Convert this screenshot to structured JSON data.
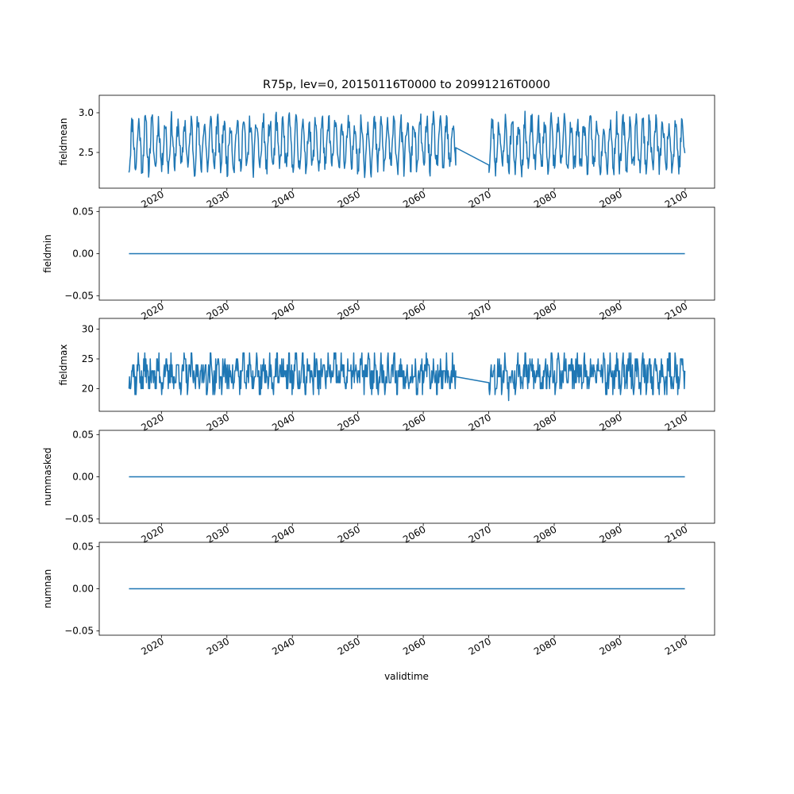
{
  "figure": {
    "title": "R75p, lev=0, 20150116T0000 to 20991216T0000",
    "xlabel": "validtime",
    "line_color": "#1f77b4"
  },
  "chart_data": [
    {
      "type": "line",
      "ylabel": "fieldmean",
      "xlim": [
        2010.5,
        2104.5
      ],
      "ylim": [
        2.05,
        3.22
      ],
      "yticks": [
        "2.5",
        "3.0"
      ],
      "ytick_values": [
        2.5,
        3.0
      ],
      "xticks": [
        "2020",
        "2030",
        "2040",
        "2050",
        "2060",
        "2070",
        "2080",
        "2090",
        "2100"
      ],
      "xtick_values": [
        2020,
        2030,
        2040,
        2050,
        2060,
        2070,
        2080,
        2090,
        2100
      ],
      "series": [
        {
          "segments": [
            {
              "start": 2015.04,
              "end": 2064.96,
              "step": 0.0833333,
              "mean": 2.6,
              "amplitude": 0.28,
              "noise": 0.14,
              "seed": 11,
              "lo": 2.1,
              "hi": 3.16
            },
            {
              "start": 2070.04,
              "end": 2099.96,
              "step": 0.0833333,
              "mean": 2.6,
              "amplitude": 0.28,
              "noise": 0.14,
              "seed": 23,
              "lo": 2.1,
              "hi": 3.16
            }
          ],
          "gap_line": {
            "x": [
              2064.96,
              2070.04
            ],
            "y": [
              2.56,
              2.34
            ]
          }
        }
      ]
    },
    {
      "type": "line",
      "ylabel": "fieldmin",
      "xlim": [
        2010.5,
        2104.5
      ],
      "ylim": [
        -0.055,
        0.055
      ],
      "yticks": [
        "−0.05",
        "0.00",
        "0.05"
      ],
      "ytick_values": [
        -0.05,
        0.0,
        0.05
      ],
      "xticks": [
        "2020",
        "2030",
        "2040",
        "2050",
        "2060",
        "2070",
        "2080",
        "2090",
        "2100"
      ],
      "xtick_values": [
        2020,
        2030,
        2040,
        2050,
        2060,
        2070,
        2080,
        2090,
        2100
      ],
      "series": [
        {
          "x": [
            2015.04,
            2099.96
          ],
          "y": [
            0.0,
            0.0
          ]
        }
      ]
    },
    {
      "type": "line",
      "ylabel": "fieldmax",
      "xlim": [
        2010.5,
        2104.5
      ],
      "ylim": [
        16.2,
        31.8
      ],
      "yticks": [
        "20",
        "25",
        "30"
      ],
      "ytick_values": [
        20,
        25,
        30
      ],
      "xticks": [
        "2020",
        "2030",
        "2040",
        "2050",
        "2060",
        "2070",
        "2080",
        "2090",
        "2100"
      ],
      "xtick_values": [
        2020,
        2030,
        2040,
        2050,
        2060,
        2070,
        2080,
        2090,
        2100
      ],
      "series": [
        {
          "segments": [
            {
              "start": 2015.04,
              "end": 2064.96,
              "step": 0.0833333,
              "mean": 22.5,
              "amplitude": 1.5,
              "noise": 2.6,
              "seed": 37,
              "lo": 17,
              "hi": 31,
              "integer": true
            },
            {
              "start": 2070.04,
              "end": 2099.96,
              "step": 0.0833333,
              "mean": 22.5,
              "amplitude": 1.5,
              "noise": 2.6,
              "seed": 53,
              "lo": 17,
              "hi": 31,
              "integer": true
            }
          ],
          "gap_line": {
            "x": [
              2064.96,
              2070.04
            ],
            "y": [
              22.0,
              21.0
            ]
          }
        }
      ]
    },
    {
      "type": "line",
      "ylabel": "nummasked",
      "xlim": [
        2010.5,
        2104.5
      ],
      "ylim": [
        -0.055,
        0.055
      ],
      "yticks": [
        "−0.05",
        "0.00",
        "0.05"
      ],
      "ytick_values": [
        -0.05,
        0.0,
        0.05
      ],
      "xticks": [
        "2020",
        "2030",
        "2040",
        "2050",
        "2060",
        "2070",
        "2080",
        "2090",
        "2100"
      ],
      "xtick_values": [
        2020,
        2030,
        2040,
        2050,
        2060,
        2070,
        2080,
        2090,
        2100
      ],
      "series": [
        {
          "x": [
            2015.04,
            2099.96
          ],
          "y": [
            0.0,
            0.0
          ]
        }
      ]
    },
    {
      "type": "line",
      "ylabel": "numnan",
      "xlim": [
        2010.5,
        2104.5
      ],
      "ylim": [
        -0.055,
        0.055
      ],
      "yticks": [
        "−0.05",
        "0.00",
        "0.05"
      ],
      "ytick_values": [
        -0.05,
        0.0,
        0.05
      ],
      "xticks": [
        "2020",
        "2030",
        "2040",
        "2050",
        "2060",
        "2070",
        "2080",
        "2090",
        "2100"
      ],
      "xtick_values": [
        2020,
        2030,
        2040,
        2050,
        2060,
        2070,
        2080,
        2090,
        2100
      ],
      "series": [
        {
          "x": [
            2015.04,
            2099.96
          ],
          "y": [
            0.0,
            0.0
          ]
        }
      ]
    }
  ]
}
